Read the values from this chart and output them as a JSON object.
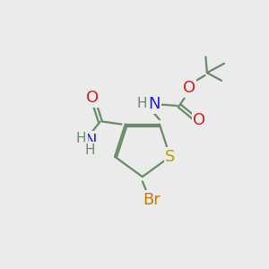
{
  "background_color": "#ebebeb",
  "bond_color": "#6a8a6a",
  "atom_colors": {
    "S": "#b8a000",
    "N": "#2222cc",
    "O": "#cc2222",
    "Br": "#cc7700",
    "C": "#6a8a6a",
    "H": "#6a8a6a"
  },
  "font_size": 13,
  "small_font": 11,
  "fig_size": [
    3.0,
    3.0
  ],
  "dpi": 100,
  "lw": 1.6
}
